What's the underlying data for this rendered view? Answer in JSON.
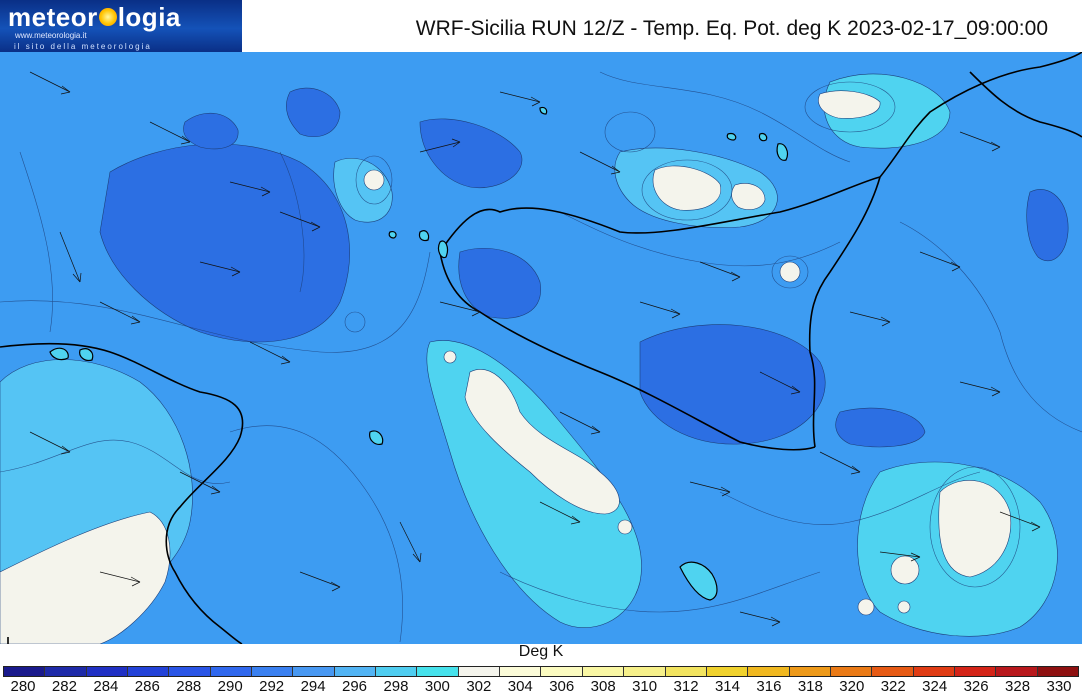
{
  "logo": {
    "brand_left": "meteor",
    "brand_right": "logia",
    "url": "www.meteorologia.it",
    "tagline": "il sito della meteorologia",
    "sun_icon": "sun-icon"
  },
  "title": "WRF-Sicilia RUN 12/Z - Temp. Eq. Pot. deg K 2023-02-17_09:00:00",
  "colorbar": {
    "title": "Deg K",
    "ticks": [
      "280",
      "282",
      "284",
      "286",
      "288",
      "290",
      "292",
      "294",
      "296",
      "298",
      "300",
      "302",
      "304",
      "306",
      "308",
      "310",
      "312",
      "314",
      "316",
      "318",
      "320",
      "322",
      "324",
      "326",
      "328",
      "330"
    ],
    "colors": [
      "#1a1a8c",
      "#1e2aa8",
      "#2030c4",
      "#2342d8",
      "#2a55e6",
      "#3068ee",
      "#3a80f0",
      "#4898f2",
      "#52b4f4",
      "#4fcdf0",
      "#46e2ec",
      "#f4f4ec",
      "#fbfbd8",
      "#fbfbc0",
      "#f9f7a4",
      "#f6f08a",
      "#f2e460",
      "#f0d22e",
      "#f0b820",
      "#ee9a1a",
      "#ea7a16",
      "#e65a14",
      "#e03c14",
      "#d42418",
      "#b8181c",
      "#8e1010"
    ]
  }
}
